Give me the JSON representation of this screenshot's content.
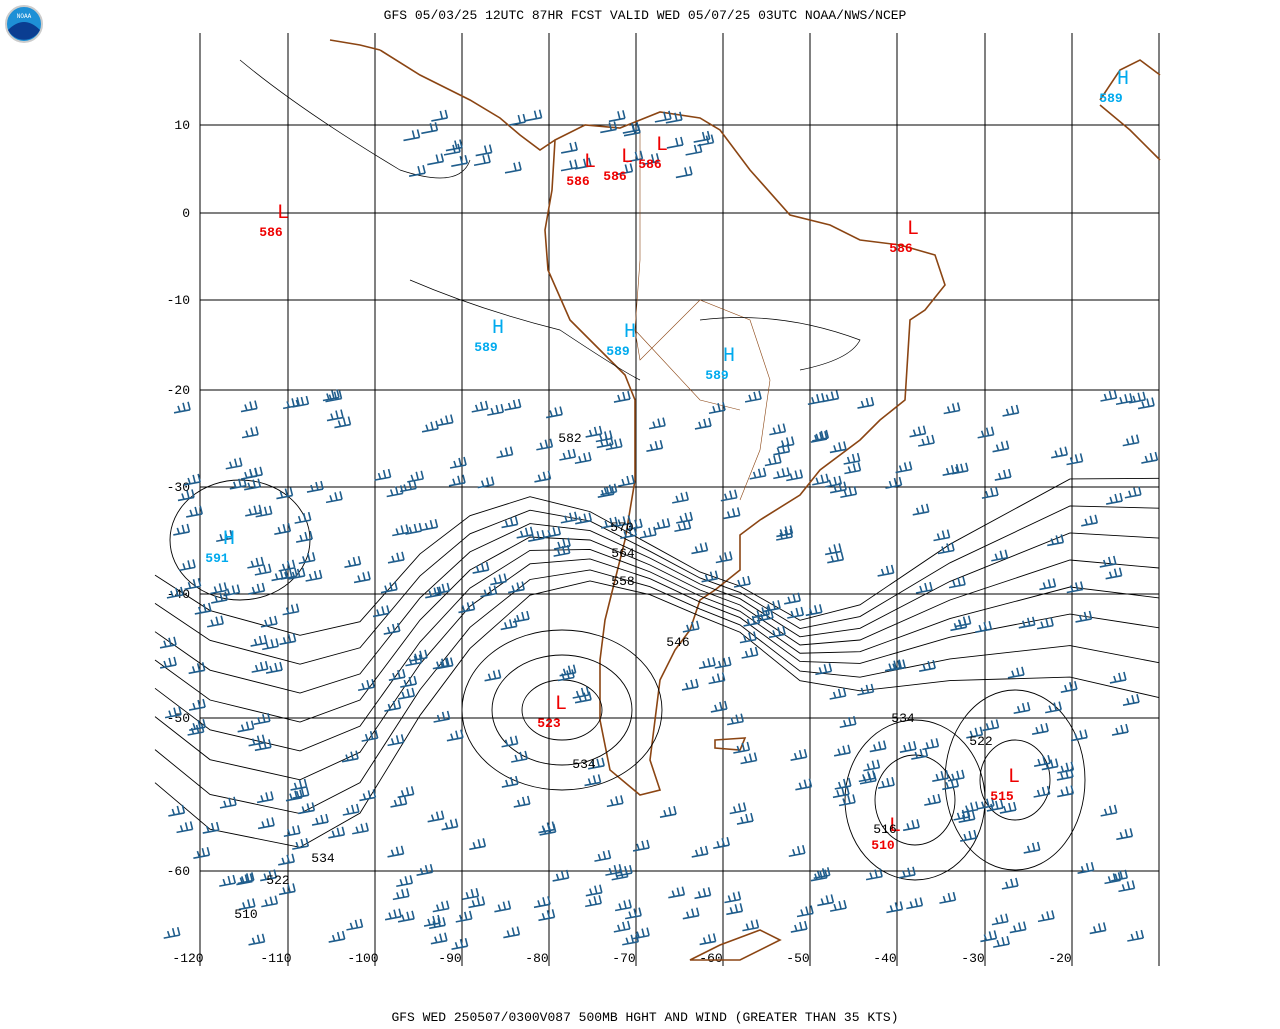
{
  "header": {
    "logo": "NOAA",
    "title": "GFS 05/03/25 12UTC 87HR FCST VALID WED 05/07/25 03UTC NOAA/NWS/NCEP"
  },
  "footer": {
    "caption": "GFS WED 250507/0300V087 500MB HGHT AND WIND (GREATER THAN 35 KTS)"
  },
  "map": {
    "lat_labels": [
      "10",
      "0",
      "-10",
      "-20",
      "-30",
      "-40",
      "-50",
      "-60"
    ],
    "lon_labels": [
      "-120",
      "-110",
      "-100",
      "-90",
      "-80",
      "-70",
      "-60",
      "-50",
      "-40",
      "-30",
      "-20"
    ],
    "centers": [
      {
        "label": "L",
        "value": "586"
      },
      {
        "label": "L",
        "value": "586"
      },
      {
        "label": "L",
        "value": "586"
      },
      {
        "label": "L",
        "value": "586"
      },
      {
        "label": "L",
        "value": "586"
      },
      {
        "label": "H",
        "value": "589"
      },
      {
        "label": "H",
        "value": "589"
      },
      {
        "label": "H",
        "value": "589"
      },
      {
        "label": "H",
        "value": "591"
      },
      {
        "label": "H",
        "value": "589"
      },
      {
        "label": "L",
        "value": "523"
      },
      {
        "label": "L",
        "value": "515"
      },
      {
        "label": "L",
        "value": "510"
      }
    ],
    "contour_labels": [
      "582",
      "570",
      "564",
      "558",
      "546",
      "534",
      "522",
      "534",
      "516",
      "534",
      "522",
      "510"
    ]
  }
}
